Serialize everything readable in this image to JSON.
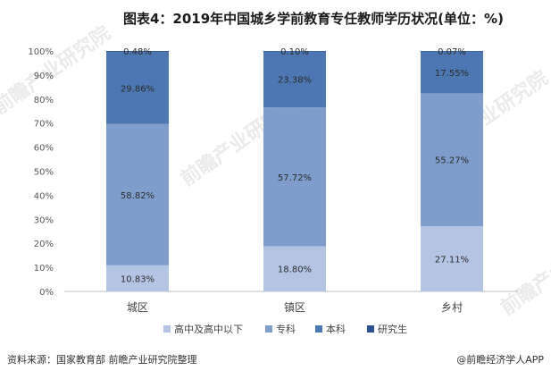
{
  "chart_data": {
    "type": "bar",
    "stacked": true,
    "title": "图表4：2019年中国城乡学前教育专任教师学历状况(单位：%)",
    "categories": [
      "城区",
      "镇区",
      "乡村"
    ],
    "series": [
      {
        "name": "高中及高中以下",
        "color": "#b4c5e4",
        "values": [
          10.83,
          18.8,
          27.11
        ],
        "labels": [
          "10.83%",
          "18.80%",
          "27.11%"
        ]
      },
      {
        "name": "专科",
        "color": "#7f9dcc",
        "values": [
          58.82,
          57.72,
          55.27
        ],
        "labels": [
          "58.82%",
          "57.72%",
          "55.27%"
        ]
      },
      {
        "name": "本科",
        "color": "#4c77b2",
        "values": [
          29.86,
          23.38,
          17.55
        ],
        "labels": [
          "29.86%",
          "23.38%",
          "17.55%"
        ]
      },
      {
        "name": "研究生",
        "color": "#2f5496",
        "values": [
          0.48,
          0.1,
          0.07
        ],
        "labels": [
          "0.48%",
          "0.10%",
          "0.07%"
        ]
      }
    ],
    "yticks": [
      "0%",
      "10%",
      "20%",
      "30%",
      "40%",
      "50%",
      "60%",
      "70%",
      "80%",
      "90%",
      "100%"
    ],
    "ylim": [
      0,
      100
    ],
    "grid": false,
    "legend": "bottom"
  },
  "footer": {
    "source": "资料来源：国家教育部 前瞻产业研究院整理",
    "credit": "@前瞻经济学人APP"
  },
  "watermark": "前瞻产业研究院"
}
